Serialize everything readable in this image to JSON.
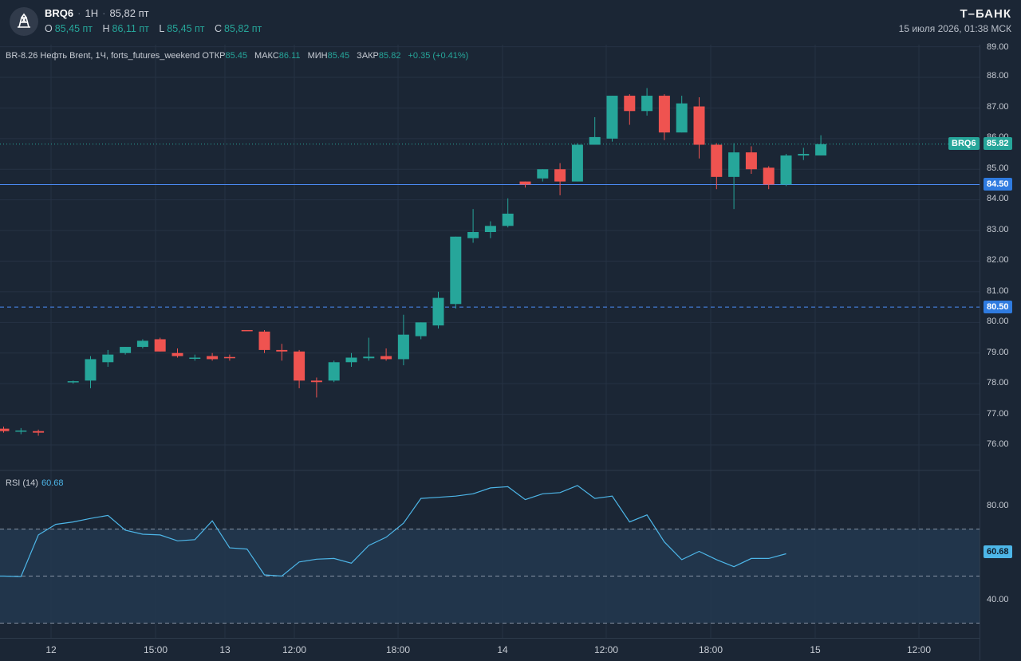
{
  "header": {
    "symbol": "BRQ6",
    "interval": "1H",
    "price": "85,82 пт",
    "ohlc": [
      {
        "key": "O",
        "value": "85,45 пт"
      },
      {
        "key": "H",
        "value": "86,11 пт"
      },
      {
        "key": "L",
        "value": "85,45 пт"
      },
      {
        "key": "C",
        "value": "85,82 пт"
      }
    ],
    "brand": "Т–БАНК",
    "datetime": "15 июля 2026, 01:38 МСК"
  },
  "legend": {
    "name": "BR-8.26 Нефть Brent, 1Ч, forts_futures_weekend",
    "open_label": "ОТКР",
    "open": "85.45",
    "high_label": "МАКС",
    "high": "86.11",
    "low_label": "МИН",
    "low": "85.45",
    "close_label": "ЗАКР",
    "close": "85.82",
    "change": "+0.35 (+0.41%)"
  },
  "rsi_legend": {
    "label": "RSI (14)",
    "value": "60.68"
  },
  "price_axis": {
    "ticks": [
      "89.00",
      "88.00",
      "87.00",
      "86.00",
      "85.00",
      "84.00",
      "83.00",
      "82.00",
      "81.00",
      "80.00",
      "79.00",
      "78.00",
      "77.00",
      "76.00"
    ],
    "rsi_ticks": [
      "80.00",
      "40.00"
    ],
    "current_label": "BRQ6",
    "current_value": "85.82",
    "level_1": "84.50",
    "level_2": "80.50",
    "rsi_value": "60.68"
  },
  "time_axis": {
    "labels": [
      "12",
      "15:00",
      "13",
      "12:00",
      "18:00",
      "14",
      "12:00",
      "18:00",
      "15",
      "12:00"
    ]
  },
  "colors": {
    "up": "#26a69a",
    "down": "#ef5350",
    "level": "#4b8bf5",
    "rsi": "#4db6e8"
  },
  "chart_data": {
    "type": "candlestick",
    "symbol": "BRQ6",
    "interval": "1H",
    "price_range": [
      75.5,
      89.2
    ],
    "candles": [
      {
        "o": 76.53,
        "h": 76.6,
        "l": 76.4,
        "c": 76.45
      },
      {
        "o": 76.45,
        "h": 76.55,
        "l": 76.35,
        "c": 76.47
      },
      {
        "o": 76.45,
        "h": 76.5,
        "l": 76.3,
        "c": 76.4
      },
      null,
      {
        "o": 78.05,
        "h": 78.1,
        "l": 78.0,
        "c": 78.08
      },
      {
        "o": 78.1,
        "h": 78.9,
        "l": 77.85,
        "c": 78.8
      },
      {
        "o": 78.7,
        "h": 79.1,
        "l": 78.55,
        "c": 78.95
      },
      {
        "o": 79.0,
        "h": 79.2,
        "l": 78.95,
        "c": 79.2
      },
      {
        "o": 79.2,
        "h": 79.45,
        "l": 79.15,
        "c": 79.4
      },
      {
        "o": 79.45,
        "h": 79.5,
        "l": 79.05,
        "c": 79.05
      },
      {
        "o": 79.0,
        "h": 79.15,
        "l": 78.85,
        "c": 78.9
      },
      {
        "o": 78.85,
        "h": 78.95,
        "l": 78.75,
        "c": 78.85
      },
      {
        "o": 78.9,
        "h": 79.0,
        "l": 78.75,
        "c": 78.8
      },
      {
        "o": 78.87,
        "h": 78.95,
        "l": 78.75,
        "c": 78.83
      },
      {
        "o": 79.75,
        "h": 79.75,
        "l": 79.75,
        "c": 79.72
      },
      {
        "o": 79.7,
        "h": 79.75,
        "l": 79.0,
        "c": 79.1
      },
      {
        "o": 79.1,
        "h": 79.3,
        "l": 78.75,
        "c": 79.05
      },
      {
        "o": 79.05,
        "h": 79.1,
        "l": 77.85,
        "c": 78.1
      },
      {
        "o": 78.1,
        "h": 78.2,
        "l": 77.55,
        "c": 78.05
      },
      {
        "o": 78.1,
        "h": 78.75,
        "l": 78.05,
        "c": 78.7
      },
      {
        "o": 78.7,
        "h": 79.0,
        "l": 78.55,
        "c": 78.85
      },
      {
        "o": 78.83,
        "h": 79.5,
        "l": 78.75,
        "c": 78.88
      },
      {
        "o": 78.9,
        "h": 79.15,
        "l": 78.75,
        "c": 78.8
      },
      {
        "o": 78.8,
        "h": 80.25,
        "l": 78.6,
        "c": 79.6
      },
      {
        "o": 79.55,
        "h": 80.0,
        "l": 79.45,
        "c": 80.0
      },
      {
        "o": 79.9,
        "h": 81.0,
        "l": 79.8,
        "c": 80.8
      },
      {
        "o": 80.6,
        "h": 82.8,
        "l": 80.45,
        "c": 82.8
      },
      {
        "o": 82.75,
        "h": 83.7,
        "l": 82.6,
        "c": 82.95
      },
      {
        "o": 82.95,
        "h": 83.3,
        "l": 82.75,
        "c": 83.15
      },
      {
        "o": 83.15,
        "h": 84.05,
        "l": 83.1,
        "c": 83.55
      },
      {
        "o": 84.6,
        "h": 84.6,
        "l": 84.4,
        "c": 84.5
      },
      {
        "o": 84.7,
        "h": 85.0,
        "l": 84.6,
        "c": 85.0
      },
      {
        "o": 85.0,
        "h": 85.2,
        "l": 84.15,
        "c": 84.6
      },
      {
        "o": 84.6,
        "h": 85.85,
        "l": 84.6,
        "c": 85.8
      },
      {
        "o": 85.8,
        "h": 86.7,
        "l": 85.8,
        "c": 86.05
      },
      {
        "o": 86.0,
        "h": 87.4,
        "l": 85.9,
        "c": 87.4
      },
      {
        "o": 87.4,
        "h": 87.45,
        "l": 86.45,
        "c": 86.9
      },
      {
        "o": 86.9,
        "h": 87.65,
        "l": 86.75,
        "c": 87.4
      },
      {
        "o": 87.4,
        "h": 87.45,
        "l": 85.95,
        "c": 86.2
      },
      {
        "o": 86.2,
        "h": 87.4,
        "l": 86.2,
        "c": 87.15
      },
      {
        "o": 87.05,
        "h": 87.35,
        "l": 85.35,
        "c": 85.8
      },
      {
        "o": 85.8,
        "h": 85.85,
        "l": 84.35,
        "c": 84.75
      },
      {
        "o": 84.75,
        "h": 85.85,
        "l": 83.7,
        "c": 85.55
      },
      {
        "o": 85.55,
        "h": 85.75,
        "l": 84.85,
        "c": 85.0
      },
      {
        "o": 85.05,
        "h": 85.1,
        "l": 84.35,
        "c": 84.5
      },
      {
        "o": 84.5,
        "h": 85.5,
        "l": 84.45,
        "c": 85.45
      },
      {
        "o": 85.45,
        "h": 85.7,
        "l": 85.3,
        "c": 85.5
      },
      {
        "o": 85.45,
        "h": 86.11,
        "l": 85.45,
        "c": 85.82
      }
    ],
    "levels": [
      84.5,
      80.5
    ],
    "rsi": {
      "period": 14,
      "value": 60.68,
      "range": [
        25,
        90
      ],
      "bands": [
        70,
        50,
        30
      ],
      "series": [
        50.0,
        50.0,
        49.8,
        67.5,
        72.0,
        73.0,
        74.5,
        75.8,
        69.5,
        67.8,
        67.5,
        65.0,
        65.5,
        73.5,
        62.0,
        61.5,
        50.5,
        50.0,
        56.0,
        57.2,
        57.5,
        55.5,
        63.0,
        66.5,
        72.5,
        83.0,
        83.5,
        84.0,
        85.0,
        87.5,
        88.0,
        82.5,
        85.0,
        85.5,
        88.5,
        83.0,
        84.0,
        73.0,
        76.0,
        64.5,
        57.0,
        60.5,
        57.0,
        54.0,
        57.5,
        57.5,
        59.5
      ]
    }
  }
}
